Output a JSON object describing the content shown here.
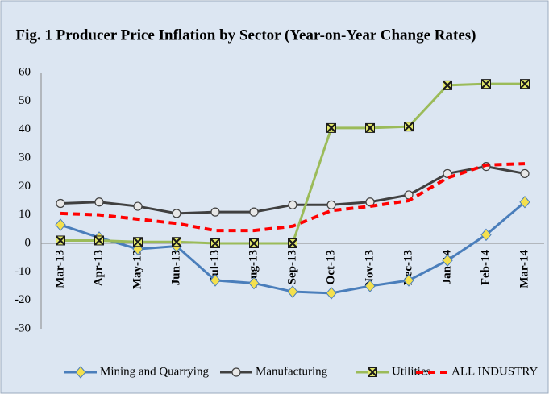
{
  "chart_data": {
    "type": "line",
    "title": "Fig. 1 Producer Price Inflation by Sector (Year-on-Year Change Rates)",
    "categories": [
      "Mar-13",
      "Apr-13",
      "May-13",
      "Jun-13",
      "Jul-13",
      "Aug-13",
      "Sep-13",
      "Oct-13",
      "Nov-13",
      "Dec-13",
      "Jan-14",
      "Feb-14",
      "Mar-14"
    ],
    "series": [
      {
        "name": "Mining and Quarrying",
        "color": "#4a7ebb",
        "marker": "diamond",
        "values": [
          6.5,
          2,
          -2,
          -1,
          -13,
          -14,
          -17,
          -17.5,
          -15,
          -13,
          -6,
          3,
          14.5
        ]
      },
      {
        "name": "Manufacturing",
        "color": "#404040",
        "marker": "circle",
        "values": [
          14,
          14.5,
          13,
          10.5,
          11,
          11,
          13.5,
          13.5,
          14.5,
          17,
          24.5,
          27,
          24.5
        ]
      },
      {
        "name": "Utilities",
        "color": "#9bbb59",
        "marker": "square",
        "values": [
          1,
          1,
          0.5,
          0.5,
          0,
          0,
          0,
          40.5,
          40.5,
          41,
          55.5,
          56,
          56
        ]
      },
      {
        "name": "ALL INDUSTRY",
        "color": "#ff0000",
        "dashed": true,
        "values": [
          10.5,
          10,
          8.5,
          7,
          4.5,
          4.5,
          6,
          11.5,
          13,
          15,
          23,
          27.5,
          28
        ]
      }
    ],
    "ylim": [
      -30,
      60
    ],
    "yticks": [
      -30,
      -20,
      -10,
      0,
      10,
      20,
      30,
      40,
      50,
      60
    ],
    "grid": false,
    "legend": "bottom"
  }
}
